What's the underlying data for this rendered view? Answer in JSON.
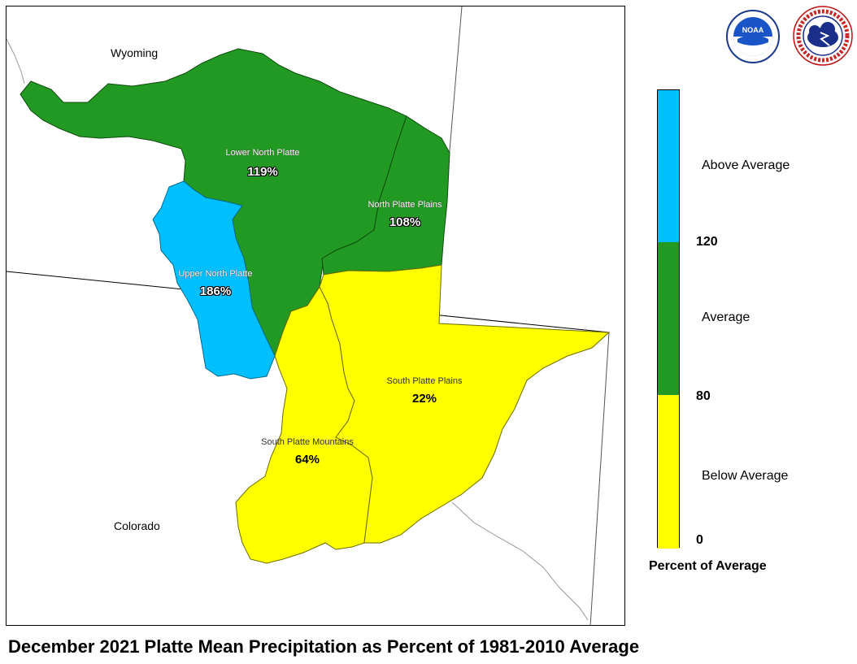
{
  "title": "December 2021 Platte Mean Precipitation as Percent of 1981-2010 Average",
  "states": {
    "wyoming": "Wyoming",
    "colorado": "Colorado"
  },
  "basins": [
    {
      "name": "Lower North Platte",
      "percent": "119%",
      "category": "Average",
      "color": "#229922"
    },
    {
      "name": "North Platte Plains",
      "percent": "108%",
      "category": "Average",
      "color": "#229922"
    },
    {
      "name": "Upper North Platte",
      "percent": "186%",
      "category": "Above Average",
      "color": "#00bfff"
    },
    {
      "name": "South Platte Plains",
      "percent": "22%",
      "category": "Below Average",
      "color": "#ffff00"
    },
    {
      "name": "South Platte Mountains",
      "percent": "64%",
      "category": "Below Average",
      "color": "#ffff00"
    }
  ],
  "legend": {
    "title": "Percent of Average",
    "categories": [
      {
        "label": "Above Average",
        "color": "#00bfff"
      },
      {
        "label": "Average",
        "color": "#229922"
      },
      {
        "label": "Below Average",
        "color": "#ffff00"
      }
    ],
    "ticks": [
      "120",
      "80",
      "0"
    ]
  },
  "logos": {
    "noaa": {
      "text": "NOAA",
      "icon": "noaa-logo"
    },
    "nws": {
      "text": "NATIONAL WEATHER SERVICE",
      "icon": "nws-logo"
    }
  }
}
